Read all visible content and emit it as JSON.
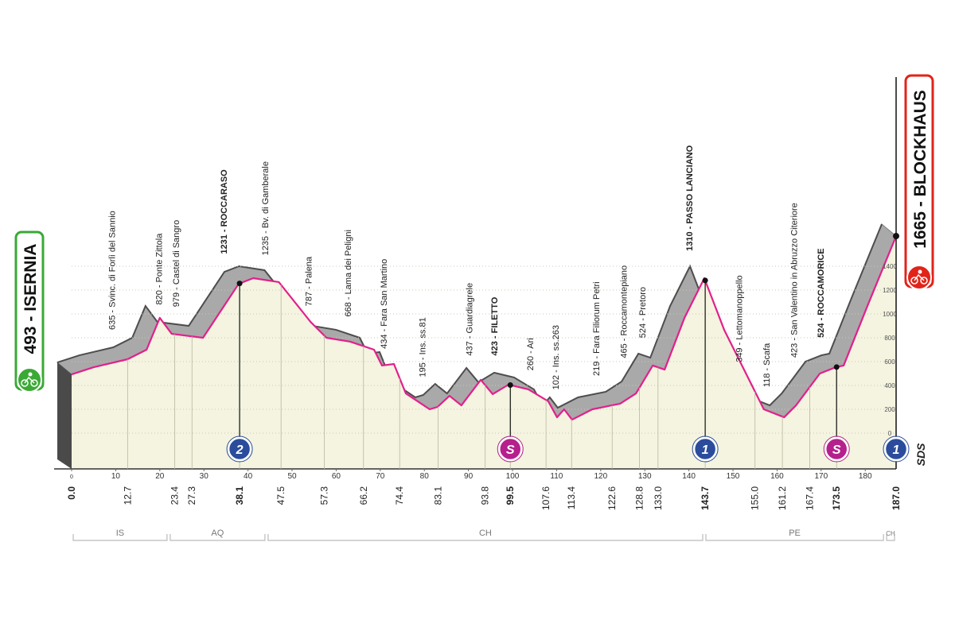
{
  "chart_data": {
    "type": "profile",
    "start": {
      "label": "493 - ISERNIA",
      "color": "#3aa935",
      "km": {
        "value": 0,
        "label": "0.0"
      }
    },
    "finish": {
      "label": "1665 - BLOCKHAUS",
      "color": "#e2231a",
      "km": {
        "value": 187,
        "label": "187.0"
      },
      "badge": {
        "text": "1",
        "color": "#2b4c9c"
      }
    },
    "brand": "SDS",
    "xlim": [
      0,
      187
    ],
    "xticks": [
      0,
      10,
      20,
      30,
      40,
      50,
      60,
      70,
      80,
      90,
      100,
      110,
      120,
      130,
      140,
      150,
      160,
      170,
      180
    ],
    "ylim": [
      0,
      1400
    ],
    "yticks": [
      0,
      200,
      400,
      600,
      800,
      1000,
      1200,
      1400
    ],
    "grid": true,
    "profile": {
      "color": "#e2208c",
      "km": [
        0,
        5,
        12.7,
        17,
        20,
        22.7,
        29.8,
        37.9,
        41.2,
        47,
        54.2,
        57.8,
        63.2,
        68.6,
        70.4,
        73.1,
        75.8,
        81.2,
        83,
        85.7,
        88.4,
        92.8,
        95.5,
        99.1,
        103.6,
        108.1,
        110.1,
        111.7,
        113.5,
        118.1,
        124.4,
        128,
        131.8,
        134.5,
        139,
        143.5,
        148,
        152.5,
        157,
        161.6,
        164.3,
        169.7,
        173.3,
        175.1,
        180.5,
        187
      ],
      "alt": [
        493,
        553,
        620,
        700,
        967,
        833,
        800,
        1253,
        1300,
        1267,
        933,
        800,
        767,
        700,
        567,
        580,
        333,
        200,
        220,
        313,
        233,
        447,
        327,
        407,
        367,
        267,
        133,
        200,
        113,
        200,
        247,
        333,
        567,
        533,
        967,
        1300,
        867,
        533,
        200,
        133,
        233,
        500,
        553,
        567,
        1067,
        1653
      ]
    },
    "waypoints": [
      {
        "km": 12.7,
        "label": "635 - Svinc. di Forlì del Sannio"
      },
      {
        "km": 23.4,
        "label": "820 - Ponte Zittola"
      },
      {
        "km": 27.3,
        "label": "979 - Castel di Sangro"
      },
      {
        "km": 38.1,
        "label": "1231 - ROCCARASO",
        "bold": true,
        "badge": {
          "text": "2",
          "color": "#2b4c9c"
        }
      },
      {
        "km": 47.5,
        "label": "1235 - Bv. di Gamberale"
      },
      {
        "km": 57.3,
        "label": "787 - Palena"
      },
      {
        "km": 66.2,
        "label": "668 - Lama dei Peligni"
      },
      {
        "km": 74.4,
        "label": "434 - Fara San Martino"
      },
      {
        "km": 83.1,
        "label": "195 - Ins. ss.81"
      },
      {
        "km": 93.8,
        "label": "437 - Guardiagrele"
      },
      {
        "km": 99.5,
        "label": "423 - FILETTO",
        "bold": true,
        "badge": {
          "text": "S",
          "color": "#b5208c"
        }
      },
      {
        "km": 107.6,
        "label": "260 - Ari"
      },
      {
        "km": 113.4,
        "label": "102 - Ins. ss.263"
      },
      {
        "km": 122.6,
        "label": "219 - Fara Filiorum Petri"
      },
      {
        "km": 128.8,
        "label": "465 - Roccamontepiano"
      },
      {
        "km": {
          "value": 133,
          "label": "133.0"
        },
        "label": "524 - Pretoro"
      },
      {
        "km": 143.7,
        "label": "1310 - PASSO LANCIANO",
        "bold": true,
        "badge": {
          "text": "1",
          "color": "#2b4c9c"
        }
      },
      {
        "km": {
          "value": 155,
          "label": "155.0"
        },
        "label": "349 - Lettomanoppello"
      },
      {
        "km": 161.2,
        "label": "118 - Scafa"
      },
      {
        "km": 167.4,
        "label": "423 - San Valentino in Abruzzo Citeriore"
      },
      {
        "km": 173.5,
        "label": "524 - ROCCAMORICE",
        "bold": true,
        "badge": {
          "text": "S",
          "color": "#b5208c"
        }
      }
    ],
    "regions": [
      {
        "name": "IS",
        "from": 0,
        "to": 22
      },
      {
        "name": "AQ",
        "from": 22,
        "to": 44.2
      },
      {
        "name": "CH",
        "from": 44.2,
        "to": 143.5
      },
      {
        "name": "PE",
        "from": 143.5,
        "to": 184.5
      },
      {
        "name": "CH",
        "from": 184.5,
        "to": 187
      }
    ]
  }
}
